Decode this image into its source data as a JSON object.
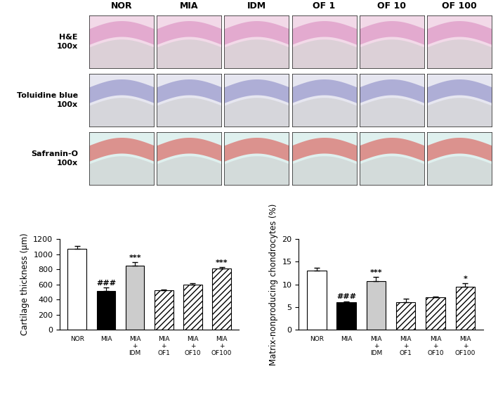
{
  "panels": {
    "columns": [
      "NOR",
      "MIA",
      "IDM",
      "OF 1",
      "OF 10",
      "OF 100"
    ],
    "rows": [
      "H&E\n100x",
      "Toluidine blue\n100x",
      "Safranin-O\n100x"
    ]
  },
  "chart_data": [
    {
      "type": "bar",
      "ylabel": "Cartilage thickness (μm)",
      "categories": [
        "NOR",
        "MIA",
        "MIA\n+\nIDM",
        "MIA\n+\nOF1",
        "MIA\n+\nOF10",
        "MIA\n+\nOF100"
      ],
      "values": [
        1070,
        515,
        845,
        520,
        600,
        810
      ],
      "errors": [
        40,
        40,
        45,
        15,
        15,
        20
      ],
      "annotations": [
        null,
        "###",
        "***",
        null,
        null,
        "***"
      ],
      "colors": [
        "#ffffff",
        "#000000",
        "#cccccc",
        "#ffffff",
        "#ffffff",
        "#ffffff"
      ],
      "ylim": [
        0,
        1200
      ],
      "yticks": [
        0,
        200,
        400,
        600,
        800,
        1000,
        1200
      ],
      "grid": false
    },
    {
      "type": "bar",
      "ylabel": "Matrix-nonproducing chondrocytes (%)",
      "categories": [
        "NOR",
        "MIA",
        "MIA\n+\nIDM",
        "MIA\n+\nOF1",
        "MIA\n+\nOF10",
        "MIA\n+\nOF100"
      ],
      "values": [
        13.1,
        6.1,
        10.7,
        6.0,
        7.2,
        9.5
      ],
      "errors": [
        0.5,
        0.2,
        0.9,
        0.8,
        0.1,
        0.7
      ],
      "annotations": [
        null,
        "###",
        "***",
        null,
        null,
        "*"
      ],
      "colors": [
        "#ffffff",
        "#000000",
        "#cccccc",
        "#ffffff",
        "#ffffff",
        "#ffffff"
      ],
      "ylim": [
        0,
        20
      ],
      "yticks": [
        0,
        5,
        10,
        15,
        20
      ],
      "grid": false
    }
  ]
}
